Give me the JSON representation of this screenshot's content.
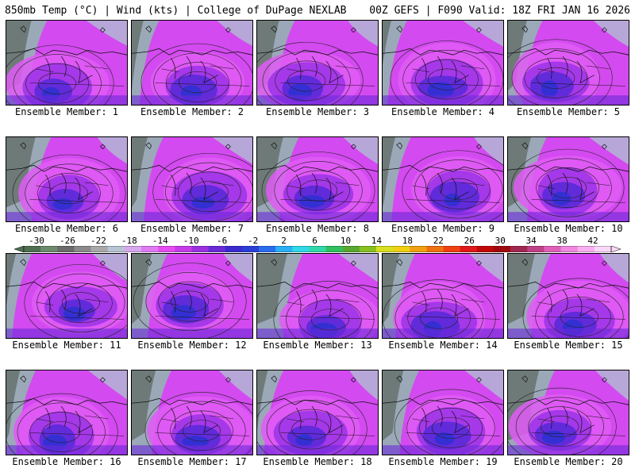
{
  "header": {
    "title_left": "850mb Temp (°C) | Wind (kts) | College of DuPage NEXLAB",
    "title_right": "00Z GEFS | F090 Valid: 18Z FRI JAN 16 2026"
  },
  "panels": [
    {
      "label": "Ensemble Member: 1"
    },
    {
      "label": "Ensemble Member: 2"
    },
    {
      "label": "Ensemble Member: 3"
    },
    {
      "label": "Ensemble Member: 4"
    },
    {
      "label": "Ensemble Member: 5"
    },
    {
      "label": "Ensemble Member: 6"
    },
    {
      "label": "Ensemble Member: 7"
    },
    {
      "label": "Ensemble Member: 8"
    },
    {
      "label": "Ensemble Member: 9"
    },
    {
      "label": "Ensemble Member: 10"
    },
    {
      "label": "Ensemble Member: 11"
    },
    {
      "label": "Ensemble Member: 12"
    },
    {
      "label": "Ensemble Member: 13"
    },
    {
      "label": "Ensemble Member: 14"
    },
    {
      "label": "Ensemble Member: 15"
    },
    {
      "label": "Ensemble Member: 16"
    },
    {
      "label": "Ensemble Member: 17"
    },
    {
      "label": "Ensemble Member: 18"
    },
    {
      "label": "Ensemble Member: 19"
    },
    {
      "label": "Ensemble Member: 20"
    }
  ],
  "colorbar": {
    "labels": [
      "-30",
      "-26",
      "-22",
      "-18",
      "-14",
      "-10",
      "-6",
      "-2",
      "2",
      "6",
      "10",
      "14",
      "18",
      "22",
      "26",
      "30",
      "34",
      "38",
      "42"
    ],
    "colors": [
      "#4f6f50",
      "#6e8a6e",
      "#6b6b6b",
      "#8a8a8a",
      "#a9a9a9",
      "#b6c4d4",
      "#d7a8ee",
      "#e07af5",
      "#e64df2",
      "#c63ce8",
      "#9b30e0",
      "#6a2ad8",
      "#3a2ad0",
      "#2a3ed8",
      "#2a6cf0",
      "#2ab0f5",
      "#30d8e8",
      "#30d8a8",
      "#30c060",
      "#58a830",
      "#88c020",
      "#d8e020",
      "#f0d010",
      "#f0a010",
      "#f07010",
      "#f04010",
      "#e01818",
      "#c00808",
      "#a00810",
      "#a02850",
      "#c04088",
      "#e060b8",
      "#f088e0",
      "#f8b0f0",
      "#fcd8f8"
    ]
  }
}
